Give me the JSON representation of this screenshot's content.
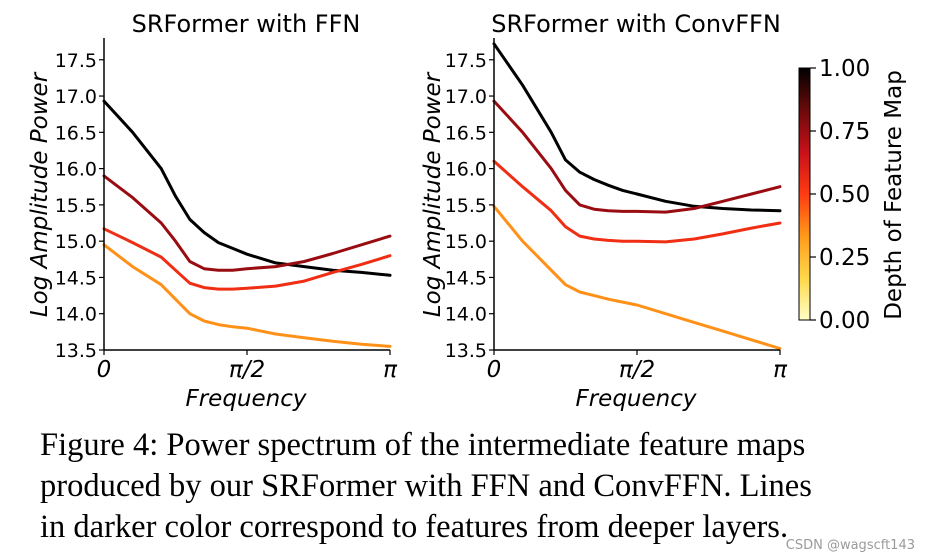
{
  "chart_data": [
    {
      "type": "line",
      "title": "SRFormer with FFN",
      "xlabel": "Frequency",
      "ylabel": "Log Amplitude Power",
      "ylim": [
        13.5,
        17.8
      ],
      "xlim": [
        0,
        1
      ],
      "x_tick_labels": [
        "0",
        "π/2",
        "π"
      ],
      "y_ticks": [
        "13.5",
        "14.0",
        "14.5",
        "15.0",
        "15.5",
        "16.0",
        "16.5",
        "17.0",
        "17.5"
      ],
      "x": [
        0,
        0.1,
        0.2,
        0.25,
        0.3,
        0.35,
        0.4,
        0.45,
        0.5,
        0.6,
        0.7,
        0.8,
        0.9,
        1.0
      ],
      "series": [
        {
          "name": "depth 1.00",
          "depth": 1.0,
          "values": [
            16.93,
            16.5,
            16.0,
            15.62,
            15.3,
            15.12,
            14.98,
            14.9,
            14.82,
            14.7,
            14.65,
            14.6,
            14.57,
            14.53
          ]
        },
        {
          "name": "depth 0.75",
          "depth": 0.75,
          "values": [
            15.9,
            15.6,
            15.25,
            15.0,
            14.72,
            14.62,
            14.6,
            14.6,
            14.62,
            14.65,
            14.72,
            14.83,
            14.95,
            15.07
          ]
        },
        {
          "name": "depth 0.55",
          "depth": 0.55,
          "values": [
            15.17,
            14.98,
            14.78,
            14.6,
            14.42,
            14.36,
            14.34,
            14.34,
            14.35,
            14.38,
            14.45,
            14.57,
            14.68,
            14.8
          ]
        },
        {
          "name": "depth 0.35",
          "depth": 0.35,
          "values": [
            14.95,
            14.65,
            14.4,
            14.2,
            14.0,
            13.9,
            13.85,
            13.82,
            13.8,
            13.72,
            13.67,
            13.62,
            13.58,
            13.55
          ]
        }
      ]
    },
    {
      "type": "line",
      "title": "SRFormer with ConvFFN",
      "xlabel": "Frequency",
      "ylabel": "Log Amplitude Power",
      "ylim": [
        13.5,
        17.8
      ],
      "xlim": [
        0,
        1
      ],
      "x_tick_labels": [
        "0",
        "π/2",
        "π"
      ],
      "y_ticks": [
        "13.5",
        "14.0",
        "14.5",
        "15.0",
        "15.5",
        "16.0",
        "16.5",
        "17.0",
        "17.5"
      ],
      "x": [
        0,
        0.1,
        0.2,
        0.25,
        0.3,
        0.35,
        0.4,
        0.45,
        0.5,
        0.6,
        0.7,
        0.8,
        0.9,
        1.0
      ],
      "series": [
        {
          "name": "depth 1.00",
          "depth": 1.0,
          "values": [
            17.72,
            17.15,
            16.5,
            16.12,
            15.95,
            15.85,
            15.77,
            15.7,
            15.65,
            15.55,
            15.48,
            15.45,
            15.43,
            15.42
          ]
        },
        {
          "name": "depth 0.75",
          "depth": 0.75,
          "values": [
            16.93,
            16.5,
            16.0,
            15.7,
            15.5,
            15.44,
            15.42,
            15.41,
            15.41,
            15.4,
            15.45,
            15.55,
            15.65,
            15.75
          ]
        },
        {
          "name": "depth 0.55",
          "depth": 0.55,
          "values": [
            16.1,
            15.75,
            15.42,
            15.2,
            15.07,
            15.03,
            15.01,
            15.0,
            15.0,
            14.99,
            15.03,
            15.1,
            15.18,
            15.25
          ]
        },
        {
          "name": "depth 0.35",
          "depth": 0.35,
          "values": [
            15.48,
            15.0,
            14.6,
            14.4,
            14.3,
            14.25,
            14.2,
            14.16,
            14.12,
            14.0,
            13.88,
            13.76,
            13.64,
            13.52
          ]
        }
      ]
    }
  ],
  "colorbar": {
    "label": "Depth of Feature Map",
    "ticks": [
      "1.00",
      "0.75",
      "0.50",
      "0.25",
      "0.00"
    ],
    "range": [
      0,
      1
    ],
    "stops": [
      "#ffffc8",
      "#ffd84a",
      "#ff9a1a",
      "#ff3b12",
      "#c8101a",
      "#6a0a0a",
      "#000000"
    ]
  },
  "caption": {
    "lines": [
      "Figure 4: Power spectrum of the intermediate feature maps",
      "produced by our SRFormer with FFN and ConvFFN. Lines",
      "in darker color correspond to features from deeper layers."
    ]
  },
  "watermark": "CSDN @wagscft143"
}
